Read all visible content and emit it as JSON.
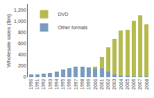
{
  "chart_data": {
    "type": "bar",
    "stacked": true,
    "ylabel": "Wholesale sales ($m)",
    "categories": [
      "1990",
      "1991",
      "1992",
      "1993",
      "1994",
      "1995",
      "1996",
      "1997",
      "1998",
      "1999",
      "2000",
      "2001",
      "2002",
      "2003",
      "2004",
      "2005",
      "2006",
      "2007",
      "2008"
    ],
    "series": [
      {
        "name": "Other formats",
        "color": "#7b9bbf",
        "values": [
          55,
          55,
          60,
          75,
          105,
          140,
          165,
          185,
          185,
          175,
          160,
          165,
          100,
          55,
          30,
          22,
          18,
          15,
          15
        ]
      },
      {
        "name": "DVD",
        "color": "#b5bb4e",
        "values": [
          0,
          0,
          0,
          0,
          0,
          0,
          0,
          0,
          0,
          0,
          20,
          190,
          430,
          620,
          800,
          820,
          980,
          1090,
          930
        ]
      }
    ],
    "ylim": [
      0,
      1300
    ],
    "yticks": [
      0,
      200,
      400,
      600,
      800,
      {
        "value": 1000,
        "label": "1,000"
      },
      {
        "value": 1200,
        "label": "1,200"
      }
    ],
    "grid": false,
    "legend": "upper left"
  }
}
